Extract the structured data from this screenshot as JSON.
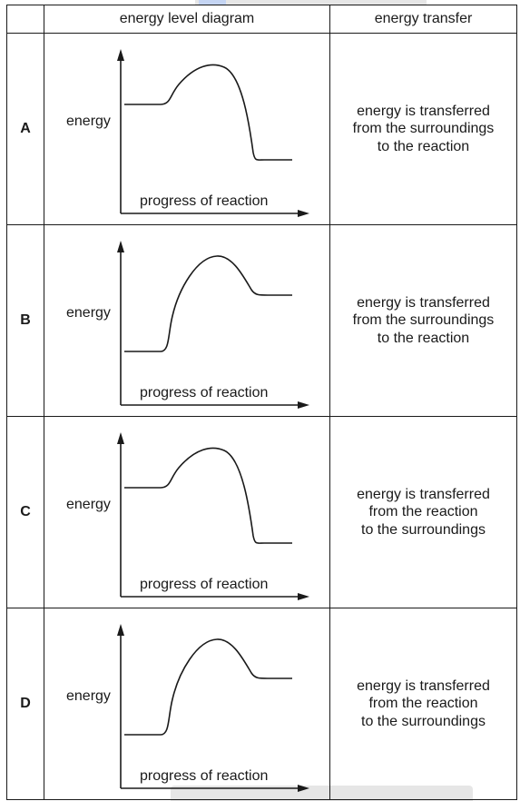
{
  "header": {
    "diagram_column": "energy level diagram",
    "transfer_column": "energy transfer"
  },
  "rows": [
    {
      "letter": "A",
      "profile": "exothermic",
      "y_axis_label": "energy",
      "x_axis_label": "progress of reaction",
      "transfer_lines": [
        "energy is transferred",
        "from the surroundings",
        "to the reaction"
      ]
    },
    {
      "letter": "B",
      "profile": "endothermic",
      "y_axis_label": "energy",
      "x_axis_label": "progress of reaction",
      "transfer_lines": [
        "energy is transferred",
        "from the surroundings",
        "to the reaction"
      ]
    },
    {
      "letter": "C",
      "profile": "exothermic",
      "y_axis_label": "energy",
      "x_axis_label": "progress of reaction",
      "transfer_lines": [
        "energy is transferred",
        "from the reaction",
        "to the surroundings"
      ]
    },
    {
      "letter": "D",
      "profile": "endothermic",
      "y_axis_label": "energy",
      "x_axis_label": "progress of reaction",
      "transfer_lines": [
        "energy is transferred",
        "from the reaction",
        "to the surroundings"
      ]
    }
  ],
  "colors": {
    "ink": "#1a1a1a",
    "overlay": "#e6e6e6"
  }
}
